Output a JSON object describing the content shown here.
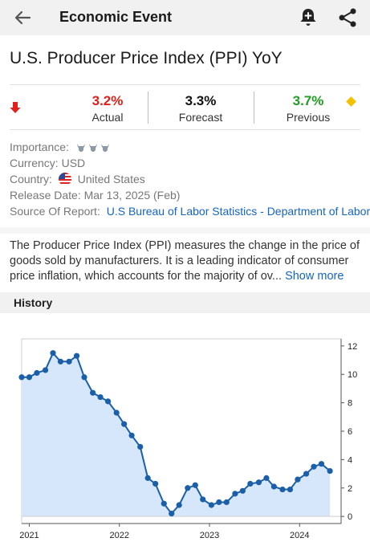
{
  "appbar": {
    "title": "Economic Event",
    "back_icon": "arrow-left-icon",
    "bell_icon": "bell-plus-icon",
    "share_icon": "share-icon"
  },
  "event": {
    "title": "U.S. Producer Price Index (PPI) YoY",
    "actual": {
      "value": "3.2%",
      "label": "Actual",
      "color": "#e0201b"
    },
    "forecast": {
      "value": "3.3%",
      "label": "Forecast",
      "color": "#111111"
    },
    "previous": {
      "value": "3.7%",
      "label": "Previous",
      "color": "#1f9e22"
    },
    "trend_icon": "red-down-arrow-icon",
    "revision_icon": "yellow-diamond-icon"
  },
  "details": {
    "importance_label": "Importance:",
    "importance_level": 3,
    "currency_label": "Currency:",
    "currency_value": "USD",
    "country_label": "Country:",
    "country_value": "United States",
    "release_label": "Release Date:",
    "release_value": "Mar 13, 2025 (Feb)",
    "source_label": "Source Of Report:",
    "source_value": "U.S Bureau of Labor Statistics - Department of Labor"
  },
  "description": {
    "text": "The Producer Price Index (PPI) measures the change in the price of goods sold by manufacturers. It is a leading indicator of consumer price inflation, which accounts for the majority of ov...",
    "more_label": "Show more"
  },
  "history": {
    "title": "History"
  },
  "chart_data": {
    "type": "area",
    "x_tick_labels": [
      "2021",
      "2022",
      "2023",
      "2024"
    ],
    "y_tick_labels": [
      "0",
      "2",
      "4",
      "6",
      "8",
      "10",
      "12"
    ],
    "ylim": [
      -0.5,
      12.5
    ],
    "x_range": [
      2021.0,
      2025.1
    ],
    "grid": false,
    "y_axis_position": "right",
    "line_color": "#1a5fa8",
    "fill_color": "#d6e6fb",
    "points": [
      [
        2020.92,
        9.8
      ],
      [
        2021.0,
        9.8
      ],
      [
        2021.08,
        10.1
      ],
      [
        2021.17,
        10.3
      ],
      [
        2021.25,
        11.5
      ],
      [
        2021.33,
        10.9
      ],
      [
        2021.42,
        10.9
      ],
      [
        2021.5,
        11.3
      ],
      [
        2021.58,
        9.8
      ],
      [
        2021.67,
        8.7
      ],
      [
        2021.75,
        8.4
      ],
      [
        2021.83,
        8.1
      ],
      [
        2021.92,
        7.3
      ],
      [
        2022.0,
        6.5
      ],
      [
        2022.08,
        5.7
      ],
      [
        2022.17,
        4.9
      ],
      [
        2022.25,
        2.7
      ],
      [
        2022.33,
        2.3
      ],
      [
        2022.42,
        0.9
      ],
      [
        2022.5,
        0.2
      ],
      [
        2022.58,
        0.8
      ],
      [
        2022.67,
        2.0
      ],
      [
        2022.75,
        2.2
      ],
      [
        2022.83,
        1.2
      ],
      [
        2022.92,
        0.8
      ],
      [
        2023.0,
        1.0
      ],
      [
        2023.08,
        1.0
      ],
      [
        2023.17,
        1.6
      ],
      [
        2023.25,
        1.8
      ],
      [
        2023.33,
        2.3
      ],
      [
        2023.42,
        2.4
      ],
      [
        2023.5,
        2.7
      ],
      [
        2023.58,
        2.1
      ],
      [
        2023.67,
        1.9
      ],
      [
        2023.75,
        1.9
      ],
      [
        2023.83,
        2.6
      ],
      [
        2023.92,
        3.0
      ],
      [
        2024.0,
        3.5
      ],
      [
        2024.08,
        3.7
      ],
      [
        2024.17,
        3.2
      ]
    ]
  }
}
